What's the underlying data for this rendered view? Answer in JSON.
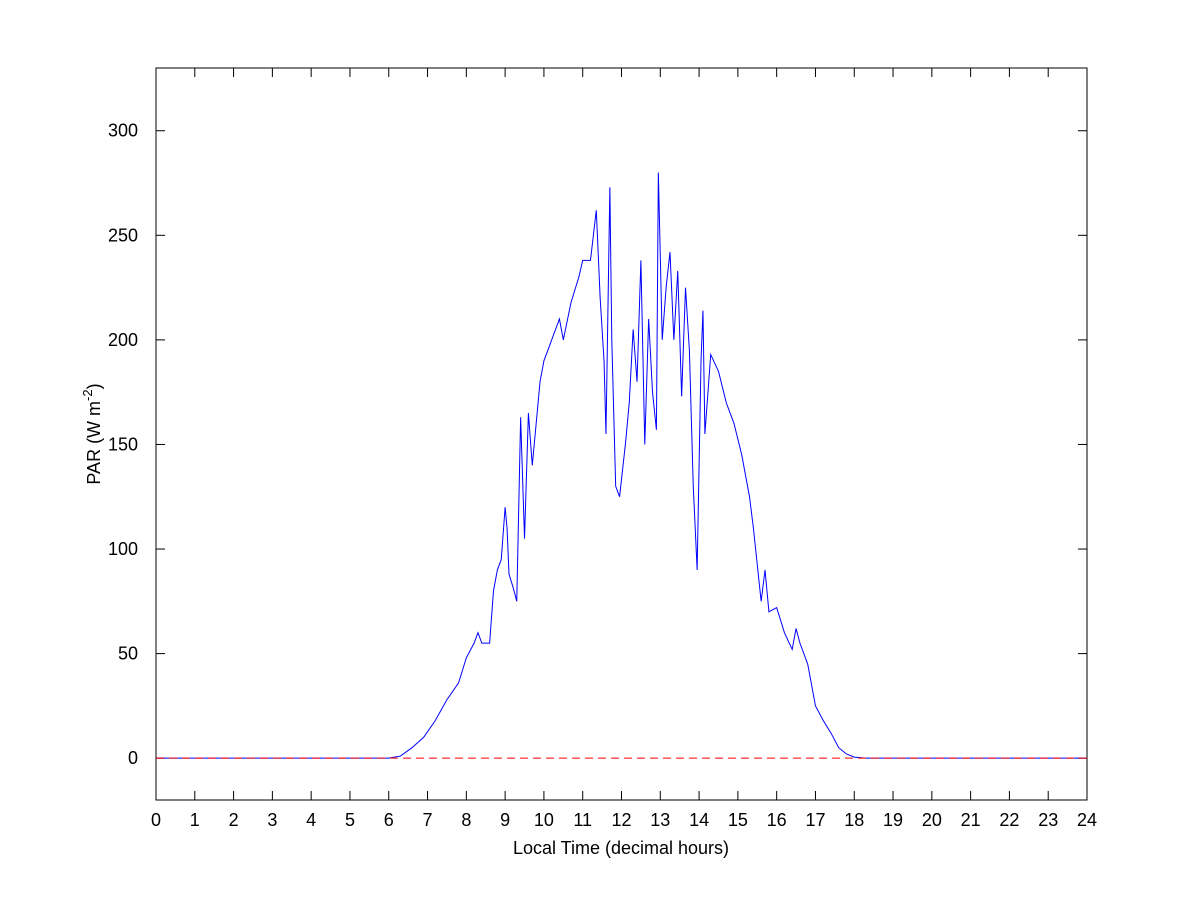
{
  "chart_data": {
    "type": "line",
    "xlabel": "Local Time (decimal hours)",
    "ylabel": [
      "PAR (W m",
      "-2",
      ")"
    ],
    "xlim": [
      0,
      24
    ],
    "xticks": [
      0,
      1,
      2,
      3,
      4,
      5,
      6,
      7,
      8,
      9,
      10,
      11,
      12,
      13,
      14,
      15,
      16,
      17,
      18,
      19,
      20,
      21,
      22,
      23,
      24
    ],
    "ylim": [
      -20,
      330
    ],
    "yticks": [
      0,
      50,
      100,
      150,
      200,
      250,
      300
    ],
    "reference_line": {
      "value": 0,
      "color": "#ff0000",
      "style": "dashed"
    },
    "series": [
      {
        "color": "#0000ff",
        "x": [
          0,
          6,
          6.3,
          6.6,
          6.9,
          7.2,
          7.5,
          7.8,
          8.0,
          8.2,
          8.3,
          8.4,
          8.6,
          8.7,
          8.8,
          8.9,
          9.0,
          9.05,
          9.1,
          9.2,
          9.3,
          9.4,
          9.5,
          9.6,
          9.7,
          9.8,
          9.9,
          10.0,
          10.2,
          10.4,
          10.5,
          10.7,
          10.9,
          11.0,
          11.2,
          11.35,
          11.45,
          11.55,
          11.6,
          11.7,
          11.75,
          11.85,
          11.95,
          12.1,
          12.2,
          12.3,
          12.4,
          12.5,
          12.6,
          12.7,
          12.8,
          12.9,
          12.95,
          13.05,
          13.15,
          13.25,
          13.35,
          13.45,
          13.55,
          13.65,
          13.75,
          13.85,
          13.95,
          14.05,
          14.1,
          14.15,
          14.3,
          14.5,
          14.7,
          14.9,
          15.1,
          15.3,
          15.4,
          15.6,
          15.7,
          15.8,
          16.0,
          16.2,
          16.4,
          16.5,
          16.6,
          16.8,
          16.9,
          17.0,
          17.2,
          17.4,
          17.6,
          17.8,
          18.0,
          18.3,
          24
        ],
        "values": [
          0,
          0,
          1,
          5,
          10,
          18,
          28,
          36,
          48,
          55,
          60,
          55,
          55,
          80,
          90,
          95,
          120,
          110,
          88,
          82,
          75,
          163,
          105,
          165,
          140,
          160,
          180,
          190,
          200,
          210,
          200,
          218,
          230,
          238,
          238,
          262,
          220,
          190,
          155,
          273,
          200,
          130,
          125,
          150,
          170,
          205,
          180,
          238,
          150,
          210,
          175,
          157,
          280,
          200,
          225,
          242,
          200,
          233,
          173,
          225,
          195,
          130,
          90,
          190,
          214,
          155,
          193,
          185,
          170,
          160,
          145,
          125,
          110,
          75,
          90,
          70,
          72,
          60,
          52,
          62,
          55,
          45,
          35,
          25,
          18,
          12,
          5,
          2,
          0.5,
          0,
          0
        ]
      }
    ]
  }
}
